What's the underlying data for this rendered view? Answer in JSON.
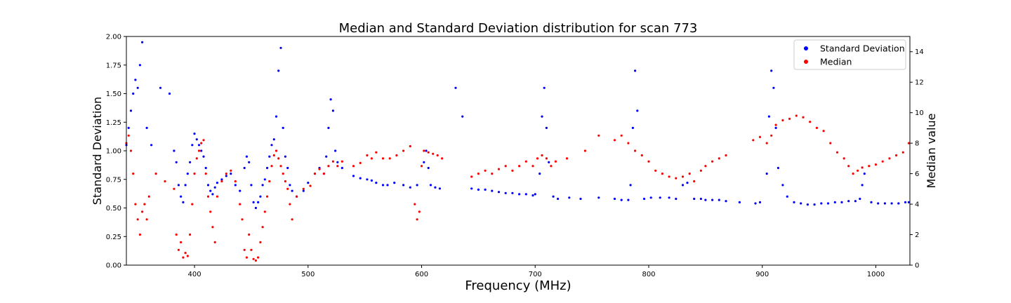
{
  "chart_data": {
    "type": "scatter",
    "title": "Median and Standard Deviation distribution for scan 773",
    "xlabel": "Frequency (MHz)",
    "ylabel_left": "Standard Deviation",
    "ylabel_right": "Median value",
    "xlim": [
      340,
      1030
    ],
    "ylim_left": [
      0,
      2.0
    ],
    "ylim_right": [
      0,
      15
    ],
    "xticks": [
      400,
      500,
      600,
      700,
      800,
      900,
      1000
    ],
    "yticks_left": [
      "0.00",
      "0.25",
      "0.50",
      "0.75",
      "1.00",
      "1.25",
      "1.50",
      "1.75",
      "2.00"
    ],
    "yticks_right": [
      0,
      2,
      4,
      6,
      8,
      10,
      12,
      14
    ],
    "grid": false,
    "legend_position": "top-right",
    "colors": {
      "std": "#0000ff",
      "median": "#ff0000"
    },
    "series": [
      {
        "name": "Standard Deviation",
        "axis": "left",
        "color": "#0000ff",
        "points": [
          [
            340,
            1.05
          ],
          [
            342,
            1.2
          ],
          [
            344,
            1.35
          ],
          [
            346,
            1.5
          ],
          [
            348,
            1.62
          ],
          [
            350,
            1.55
          ],
          [
            352,
            1.75
          ],
          [
            354,
            1.95
          ],
          [
            358,
            1.2
          ],
          [
            362,
            1.05
          ],
          [
            370,
            1.55
          ],
          [
            378,
            1.5
          ],
          [
            382,
            1.0
          ],
          [
            384,
            0.9
          ],
          [
            386,
            0.7
          ],
          [
            388,
            0.6
          ],
          [
            390,
            0.55
          ],
          [
            392,
            0.7
          ],
          [
            394,
            0.8
          ],
          [
            396,
            0.9
          ],
          [
            398,
            1.05
          ],
          [
            400,
            1.15
          ],
          [
            402,
            1.1
          ],
          [
            404,
            1.05
          ],
          [
            406,
            1.0
          ],
          [
            408,
            0.95
          ],
          [
            410,
            0.85
          ],
          [
            412,
            0.7
          ],
          [
            414,
            0.65
          ],
          [
            416,
            0.62
          ],
          [
            418,
            0.68
          ],
          [
            420,
            0.72
          ],
          [
            424,
            0.75
          ],
          [
            428,
            0.78
          ],
          [
            432,
            0.8
          ],
          [
            436,
            0.7
          ],
          [
            440,
            0.65
          ],
          [
            444,
            0.85
          ],
          [
            446,
            0.95
          ],
          [
            448,
            0.9
          ],
          [
            450,
            0.7
          ],
          [
            452,
            0.55
          ],
          [
            454,
            0.5
          ],
          [
            456,
            0.55
          ],
          [
            458,
            0.6
          ],
          [
            460,
            0.7
          ],
          [
            462,
            0.75
          ],
          [
            464,
            0.85
          ],
          [
            466,
            0.95
          ],
          [
            468,
            1.05
          ],
          [
            470,
            1.1
          ],
          [
            472,
            1.3
          ],
          [
            474,
            1.7
          ],
          [
            476,
            1.9
          ],
          [
            478,
            1.2
          ],
          [
            480,
            0.95
          ],
          [
            482,
            0.85
          ],
          [
            484,
            0.7
          ],
          [
            486,
            0.65
          ],
          [
            490,
            0.6
          ],
          [
            496,
            0.65
          ],
          [
            500,
            0.72
          ],
          [
            506,
            0.8
          ],
          [
            510,
            0.85
          ],
          [
            514,
            0.8
          ],
          [
            516,
            0.95
          ],
          [
            518,
            1.2
          ],
          [
            520,
            1.45
          ],
          [
            522,
            1.35
          ],
          [
            524,
            1.0
          ],
          [
            526,
            0.9
          ],
          [
            530,
            0.85
          ],
          [
            540,
            0.78
          ],
          [
            546,
            0.76
          ],
          [
            552,
            0.75
          ],
          [
            556,
            0.74
          ],
          [
            560,
            0.72
          ],
          [
            566,
            0.7
          ],
          [
            570,
            0.7
          ],
          [
            576,
            0.72
          ],
          [
            584,
            0.7
          ],
          [
            590,
            0.68
          ],
          [
            596,
            0.7
          ],
          [
            602,
            0.9
          ],
          [
            604,
            1.0
          ],
          [
            606,
            0.85
          ],
          [
            608,
            0.7
          ],
          [
            612,
            0.68
          ],
          [
            616,
            0.67
          ],
          [
            630,
            1.55
          ],
          [
            636,
            1.3
          ],
          [
            644,
            0.67
          ],
          [
            650,
            0.66
          ],
          [
            656,
            0.66
          ],
          [
            662,
            0.65
          ],
          [
            668,
            0.64
          ],
          [
            674,
            0.63
          ],
          [
            680,
            0.63
          ],
          [
            686,
            0.62
          ],
          [
            692,
            0.62
          ],
          [
            698,
            0.61
          ],
          [
            700,
            0.62
          ],
          [
            704,
            0.8
          ],
          [
            706,
            1.3
          ],
          [
            708,
            1.55
          ],
          [
            710,
            1.2
          ],
          [
            712,
            0.9
          ],
          [
            716,
            0.6
          ],
          [
            720,
            0.58
          ],
          [
            730,
            0.59
          ],
          [
            740,
            0.58
          ],
          [
            756,
            0.59
          ],
          [
            770,
            0.58
          ],
          [
            776,
            0.57
          ],
          [
            782,
            0.57
          ],
          [
            784,
            0.7
          ],
          [
            786,
            1.2
          ],
          [
            788,
            1.7
          ],
          [
            790,
            1.35
          ],
          [
            796,
            0.58
          ],
          [
            802,
            0.59
          ],
          [
            810,
            0.59
          ],
          [
            818,
            0.59
          ],
          [
            824,
            0.58
          ],
          [
            830,
            0.7
          ],
          [
            834,
            0.72
          ],
          [
            840,
            0.58
          ],
          [
            846,
            0.58
          ],
          [
            850,
            0.57
          ],
          [
            856,
            0.57
          ],
          [
            862,
            0.57
          ],
          [
            868,
            0.56
          ],
          [
            880,
            0.55
          ],
          [
            894,
            0.54
          ],
          [
            898,
            0.55
          ],
          [
            904,
            0.8
          ],
          [
            906,
            1.3
          ],
          [
            908,
            1.7
          ],
          [
            910,
            1.55
          ],
          [
            912,
            1.2
          ],
          [
            914,
            0.85
          ],
          [
            918,
            0.7
          ],
          [
            922,
            0.6
          ],
          [
            928,
            0.55
          ],
          [
            934,
            0.54
          ],
          [
            940,
            0.53
          ],
          [
            946,
            0.53
          ],
          [
            952,
            0.54
          ],
          [
            958,
            0.54
          ],
          [
            964,
            0.55
          ],
          [
            970,
            0.55
          ],
          [
            976,
            0.56
          ],
          [
            982,
            0.56
          ],
          [
            986,
            0.58
          ],
          [
            988,
            0.7
          ],
          [
            990,
            0.8
          ],
          [
            996,
            0.55
          ],
          [
            1002,
            0.54
          ],
          [
            1008,
            0.54
          ],
          [
            1014,
            0.54
          ],
          [
            1020,
            0.54
          ],
          [
            1026,
            0.55
          ],
          [
            1029,
            0.55
          ]
        ]
      },
      {
        "name": "Median",
        "axis": "right",
        "color": "#ff0000",
        "points": [
          [
            340,
            8.0
          ],
          [
            342,
            8.5
          ],
          [
            344,
            7.5
          ],
          [
            346,
            6.0
          ],
          [
            348,
            4.0
          ],
          [
            350,
            3.0
          ],
          [
            352,
            2.0
          ],
          [
            354,
            3.5
          ],
          [
            356,
            4.0
          ],
          [
            358,
            3.0
          ],
          [
            360,
            4.5
          ],
          [
            366,
            6.0
          ],
          [
            374,
            5.5
          ],
          [
            382,
            5.0
          ],
          [
            384,
            2.0
          ],
          [
            386,
            1.0
          ],
          [
            388,
            1.5
          ],
          [
            390,
            0.5
          ],
          [
            392,
            0.8
          ],
          [
            394,
            0.6
          ],
          [
            396,
            2.0
          ],
          [
            398,
            4.0
          ],
          [
            400,
            6.0
          ],
          [
            402,
            7.0
          ],
          [
            404,
            7.5
          ],
          [
            406,
            8.0
          ],
          [
            408,
            8.2
          ],
          [
            410,
            6.0
          ],
          [
            412,
            4.5
          ],
          [
            414,
            3.5
          ],
          [
            416,
            2.5
          ],
          [
            418,
            1.5
          ],
          [
            420,
            4.5
          ],
          [
            424,
            5.5
          ],
          [
            428,
            6.0
          ],
          [
            432,
            6.2
          ],
          [
            436,
            5.5
          ],
          [
            440,
            4.0
          ],
          [
            442,
            3.0
          ],
          [
            444,
            1.0
          ],
          [
            446,
            0.5
          ],
          [
            448,
            2.0
          ],
          [
            450,
            1.0
          ],
          [
            452,
            0.4
          ],
          [
            454,
            0.3
          ],
          [
            456,
            0.5
          ],
          [
            458,
            1.5
          ],
          [
            460,
            2.5
          ],
          [
            462,
            3.5
          ],
          [
            464,
            4.5
          ],
          [
            466,
            5.5
          ],
          [
            468,
            6.5
          ],
          [
            470,
            7.2
          ],
          [
            472,
            7.5
          ],
          [
            474,
            7.0
          ],
          [
            476,
            6.5
          ],
          [
            478,
            6.0
          ],
          [
            480,
            5.5
          ],
          [
            482,
            5.0
          ],
          [
            484,
            4.0
          ],
          [
            486,
            3.0
          ],
          [
            490,
            4.5
          ],
          [
            496,
            5.0
          ],
          [
            502,
            5.2
          ],
          [
            506,
            6.0
          ],
          [
            510,
            6.3
          ],
          [
            514,
            6.0
          ],
          [
            518,
            6.5
          ],
          [
            522,
            6.8
          ],
          [
            526,
            6.5
          ],
          [
            530,
            6.8
          ],
          [
            540,
            6.5
          ],
          [
            546,
            6.7
          ],
          [
            552,
            7.2
          ],
          [
            556,
            7.0
          ],
          [
            560,
            7.4
          ],
          [
            566,
            7.0
          ],
          [
            572,
            7.0
          ],
          [
            578,
            7.2
          ],
          [
            584,
            7.5
          ],
          [
            590,
            7.8
          ],
          [
            594,
            4.0
          ],
          [
            596,
            3.0
          ],
          [
            598,
            3.5
          ],
          [
            600,
            6.5
          ],
          [
            602,
            7.5
          ],
          [
            606,
            7.4
          ],
          [
            610,
            7.3
          ],
          [
            614,
            7.2
          ],
          [
            618,
            7.0
          ],
          [
            644,
            5.8
          ],
          [
            650,
            6.0
          ],
          [
            656,
            6.2
          ],
          [
            662,
            6.0
          ],
          [
            668,
            6.3
          ],
          [
            674,
            6.5
          ],
          [
            680,
            6.2
          ],
          [
            686,
            6.5
          ],
          [
            692,
            6.8
          ],
          [
            698,
            6.5
          ],
          [
            702,
            7.0
          ],
          [
            706,
            7.2
          ],
          [
            710,
            7.0
          ],
          [
            714,
            6.5
          ],
          [
            718,
            6.8
          ],
          [
            728,
            7.0
          ],
          [
            744,
            7.5
          ],
          [
            756,
            8.5
          ],
          [
            770,
            8.2
          ],
          [
            776,
            8.5
          ],
          [
            782,
            8.0
          ],
          [
            788,
            7.5
          ],
          [
            794,
            7.2
          ],
          [
            800,
            6.8
          ],
          [
            806,
            6.2
          ],
          [
            812,
            6.0
          ],
          [
            818,
            5.8
          ],
          [
            824,
            5.7
          ],
          [
            830,
            5.8
          ],
          [
            836,
            6.0
          ],
          [
            840,
            5.5
          ],
          [
            846,
            6.2
          ],
          [
            850,
            6.5
          ],
          [
            856,
            6.8
          ],
          [
            862,
            7.0
          ],
          [
            868,
            7.2
          ],
          [
            892,
            8.2
          ],
          [
            898,
            8.4
          ],
          [
            904,
            8.0
          ],
          [
            908,
            8.5
          ],
          [
            912,
            9.2
          ],
          [
            918,
            9.5
          ],
          [
            924,
            9.6
          ],
          [
            930,
            9.8
          ],
          [
            936,
            9.7
          ],
          [
            942,
            9.4
          ],
          [
            948,
            9.0
          ],
          [
            954,
            8.8
          ],
          [
            960,
            8.0
          ],
          [
            966,
            7.4
          ],
          [
            972,
            7.0
          ],
          [
            976,
            6.5
          ],
          [
            980,
            6.0
          ],
          [
            984,
            6.2
          ],
          [
            988,
            6.4
          ],
          [
            994,
            6.5
          ],
          [
            1000,
            6.6
          ],
          [
            1006,
            6.8
          ],
          [
            1012,
            7.0
          ],
          [
            1018,
            7.2
          ],
          [
            1024,
            7.4
          ],
          [
            1029,
            8.0
          ]
        ]
      }
    ]
  }
}
